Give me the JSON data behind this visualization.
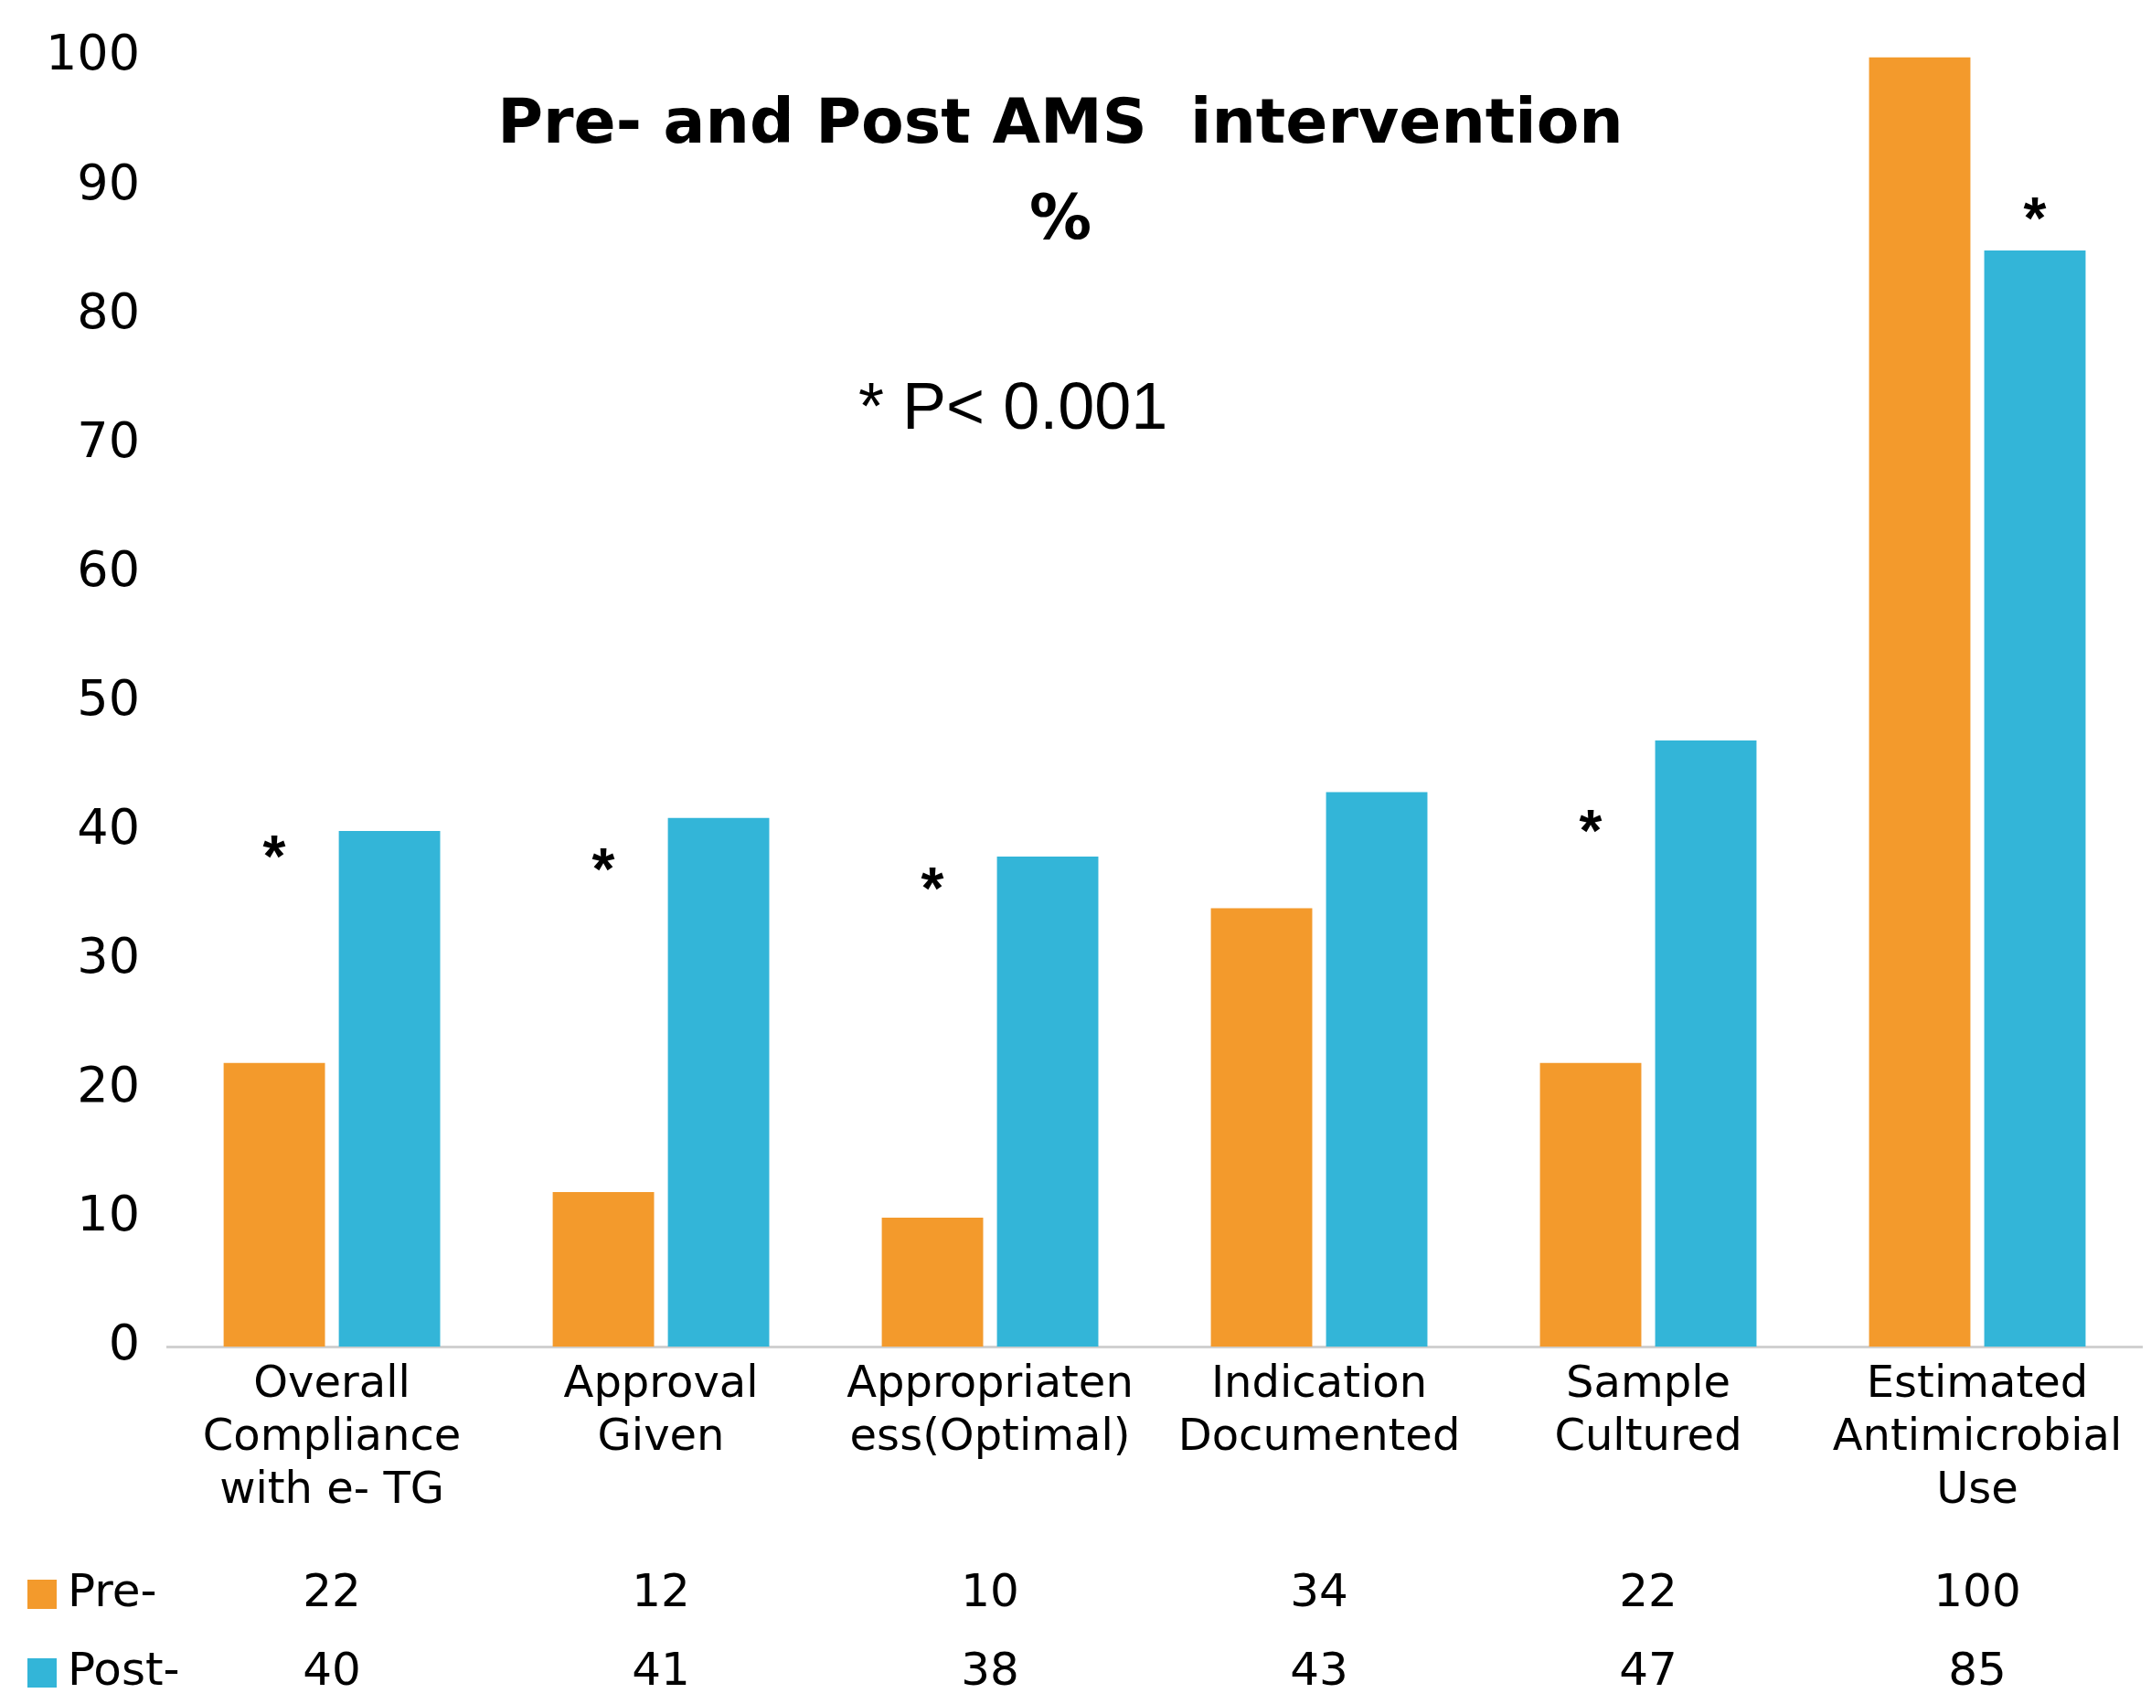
{
  "chart_data": {
    "type": "bar",
    "title": "Pre- and Post AMS  intervention %",
    "categories": [
      "Overall Compliance with e- TG",
      "Approval Given",
      "Appropriateness(Optimal)",
      "Indication Documented",
      "Sample Cultured",
      "Estimated Antimicrobial Use"
    ],
    "series": [
      {
        "name": "Pre-",
        "color": "#f39a2c",
        "values": [
          22,
          12,
          10,
          34,
          22,
          100
        ]
      },
      {
        "name": "Post-",
        "color": "#33b5d8",
        "values": [
          40,
          41,
          38,
          43,
          47,
          85
        ]
      }
    ],
    "ylim": [
      0,
      100
    ],
    "yticks": [
      0,
      10,
      20,
      30,
      40,
      50,
      60,
      70,
      80,
      90,
      100
    ],
    "grid": false,
    "legend": "bottom",
    "data_labels": true,
    "annotations": [
      "* P< 0.001",
      "*",
      "*",
      "*",
      "*",
      "*"
    ]
  }
}
